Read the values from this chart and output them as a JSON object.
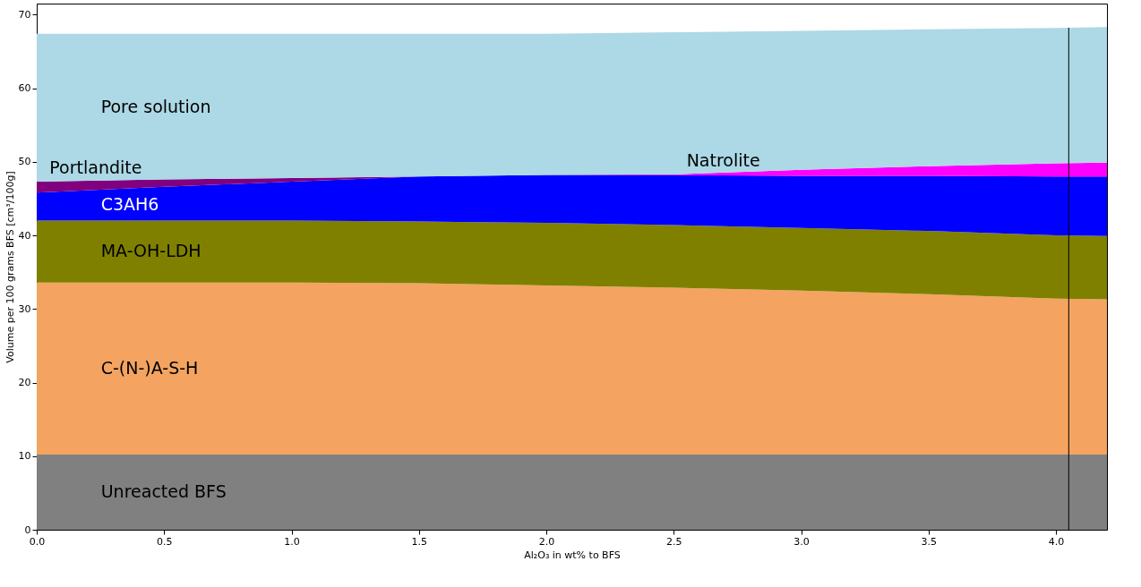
{
  "chart_data": {
    "type": "area",
    "stacked": true,
    "xlabel": "Al₂O₃ in wt% to BFS",
    "ylabel": "Volume per 100 grams BFS [cm³/100g]",
    "x": [
      0,
      0.5,
      1.0,
      1.5,
      2.0,
      2.5,
      3.0,
      3.5,
      4.0,
      4.2
    ],
    "series": [
      {
        "name": "Unreacted BFS",
        "color": "#808080",
        "values": [
          10.2,
          10.2,
          10.2,
          10.2,
          10.2,
          10.2,
          10.2,
          10.2,
          10.2,
          10.2
        ]
      },
      {
        "name": "C-(N-)A-S-H",
        "color": "#f4a460",
        "values": [
          23.4,
          23.4,
          23.4,
          23.3,
          23.0,
          22.7,
          22.3,
          21.8,
          21.2,
          21.1
        ]
      },
      {
        "name": "MA-OH-LDH",
        "color": "#808000",
        "values": [
          8.4,
          8.4,
          8.4,
          8.4,
          8.5,
          8.5,
          8.5,
          8.6,
          8.6,
          8.6
        ]
      },
      {
        "name": "C3AH6",
        "color": "#0000ff",
        "values": [
          3.8,
          4.6,
          5.3,
          6.1,
          6.5,
          6.8,
          7.1,
          7.5,
          8.0,
          8.1
        ]
      },
      {
        "name": "Portlandite",
        "color": "#800080",
        "values": [
          1.5,
          1.0,
          0.5,
          0,
          0,
          0,
          0,
          0,
          0,
          0
        ]
      },
      {
        "name": "Natrolite",
        "color": "#ff00ff",
        "values": [
          0,
          0,
          0,
          0,
          0,
          0.1,
          0.8,
          1.3,
          1.8,
          1.9
        ]
      },
      {
        "name": "Pore solution",
        "color": "#add8e6",
        "values": [
          20.1,
          19.8,
          19.6,
          19.4,
          19.2,
          19.3,
          18.9,
          18.6,
          18.4,
          18.4
        ]
      }
    ],
    "ref_lines": [
      {
        "axis": "x",
        "value": 4.05,
        "color": "#000000"
      }
    ],
    "xlim": [
      0,
      4.2
    ],
    "xticks": [
      {
        "value": 0,
        "label": "0.0"
      },
      0.5,
      {
        "value": 1,
        "label": "1.0"
      },
      1.5,
      {
        "value": 2,
        "label": "2.0"
      },
      2.5,
      {
        "value": 3,
        "label": "3.0"
      },
      3.5,
      {
        "value": 4,
        "label": "4.0"
      }
    ],
    "ylim": [
      0,
      71.5
    ],
    "yticks": [
      0,
      10,
      20,
      30,
      40,
      50,
      60,
      70
    ],
    "grid": false,
    "legend": false
  }
}
